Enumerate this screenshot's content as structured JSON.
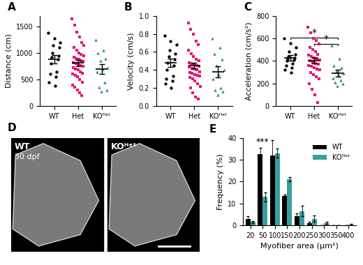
{
  "chart_data": [
    {
      "type": "scatter",
      "title": "A",
      "y_label": "Distance (cm)",
      "ylim": [
        0,
        1700
      ],
      "yticks": [
        0,
        500,
        1000,
        1500
      ],
      "groups": [
        {
          "name": "WT",
          "color": "#000000",
          "marker": "circle",
          "values": [
            1380,
            1280,
            1200,
            1150,
            1100,
            1000,
            950,
            920,
            880,
            800,
            650,
            600,
            550,
            450,
            380
          ],
          "mean": 880,
          "error": 80
        },
        {
          "name": "Het",
          "color": "#e6176f",
          "marker": "square",
          "values": [
            1650,
            1520,
            1400,
            1300,
            1200,
            1150,
            1100,
            1050,
            1000,
            980,
            950,
            920,
            900,
            880,
            860,
            840,
            820,
            800,
            780,
            760,
            750,
            730,
            700,
            680,
            650,
            620,
            600,
            580,
            550,
            500,
            450,
            400,
            350,
            300,
            250,
            200
          ],
          "mean": 810,
          "error": 55
        },
        {
          "name": "KOᴴᵉᵗ",
          "color": "#2a8a8a",
          "marker": "triangle",
          "values": [
            1250,
            1050,
            1000,
            900,
            850,
            720,
            700,
            650,
            450,
            350,
            300,
            280
          ],
          "mean": 700,
          "error": 90
        }
      ]
    },
    {
      "type": "scatter",
      "title": "B",
      "y_label": "Velocity (cm/s)",
      "ylim": [
        0.0,
        1.0
      ],
      "yticks": [
        0.0,
        0.2,
        0.4,
        0.6,
        0.8,
        1.0
      ],
      "groups": [
        {
          "name": "WT",
          "color": "#000000",
          "marker": "circle",
          "values": [
            0.78,
            0.72,
            0.68,
            0.62,
            0.58,
            0.55,
            0.52,
            0.48,
            0.45,
            0.4,
            0.33,
            0.3,
            0.28,
            0.25,
            0.2
          ],
          "mean": 0.48,
          "error": 0.05
        },
        {
          "name": "Het",
          "color": "#e6176f",
          "marker": "square",
          "values": [
            0.92,
            0.85,
            0.8,
            0.72,
            0.68,
            0.62,
            0.58,
            0.55,
            0.52,
            0.5,
            0.48,
            0.47,
            0.46,
            0.45,
            0.44,
            0.43,
            0.42,
            0.41,
            0.4,
            0.38,
            0.37,
            0.36,
            0.35,
            0.34,
            0.33,
            0.32,
            0.3,
            0.28,
            0.25,
            0.22,
            0.2,
            0.15,
            0.1,
            0.08
          ],
          "mean": 0.45,
          "error": 0.03
        },
        {
          "name": "KOᴴᵉᵗ",
          "color": "#2a8a8a",
          "marker": "triangle",
          "values": [
            0.75,
            0.65,
            0.58,
            0.52,
            0.45,
            0.4,
            0.35,
            0.3,
            0.2,
            0.18,
            0.16,
            0.12
          ],
          "mean": 0.38,
          "error": 0.06
        }
      ]
    },
    {
      "type": "scatter",
      "title": "C",
      "y_label": "Acceleration (cm/s²)",
      "ylim": [
        0,
        800
      ],
      "yticks": [
        0,
        200,
        400,
        600,
        800
      ],
      "annotations": [
        {
          "text": "*",
          "between": [
            "WT",
            "KOᴴᵉᵗ"
          ]
        },
        {
          "text": "*",
          "between": [
            "Het",
            "KOᴴᵉᵗ"
          ]
        }
      ],
      "groups": [
        {
          "name": "WT",
          "color": "#000000",
          "marker": "circle",
          "values": [
            600,
            560,
            520,
            480,
            460,
            440,
            430,
            420,
            410,
            400,
            380,
            360,
            340,
            320,
            300
          ],
          "mean": 425,
          "error": 25
        },
        {
          "name": "Het",
          "color": "#e6176f",
          "marker": "square",
          "values": [
            700,
            650,
            600,
            580,
            550,
            520,
            500,
            480,
            460,
            450,
            440,
            430,
            420,
            410,
            400,
            390,
            380,
            370,
            360,
            350,
            340,
            330,
            320,
            300,
            280,
            260,
            240,
            200,
            150,
            100,
            30
          ],
          "mean": 400,
          "error": 25
        },
        {
          "name": "KOᴴᵉᵗ",
          "color": "#2a8a8a",
          "marker": "triangle",
          "values": [
            540,
            420,
            360,
            340,
            310,
            290,
            270,
            250,
            230,
            210,
            200,
            180
          ],
          "mean": 290,
          "error": 30
        }
      ]
    },
    {
      "type": "image",
      "title": "D",
      "panels": [
        {
          "label": "WT",
          "note": "30 dpf"
        },
        {
          "label": "KOᴴᵉᵗ"
        }
      ]
    },
    {
      "type": "bar",
      "title": "E",
      "x_label": "Myofiber area (μm²)",
      "y_label": "Frequency (%)",
      "categories": [
        "20",
        "50",
        "100",
        "150",
        "200",
        "250",
        "300",
        "350",
        "400"
      ],
      "ylim": [
        0,
        40
      ],
      "yticks": [
        0,
        10,
        20,
        30,
        40
      ],
      "legend": "upper right",
      "annotations": [
        {
          "text": "***",
          "category": "50"
        }
      ],
      "series": [
        {
          "name": "WT",
          "color": "#000000",
          "values": [
            3,
            32.5,
            32,
            13.5,
            4,
            1,
            0,
            0,
            0
          ],
          "error": [
            1,
            3,
            7,
            0.5,
            1.5,
            0.5,
            0,
            0,
            0
          ]
        },
        {
          "name": "KOᴴᵉᵗ",
          "color": "#3a9e9e",
          "values": [
            1.5,
            13,
            33,
            21,
            6.5,
            3,
            1,
            0,
            0.3
          ],
          "error": [
            0.5,
            2,
            2,
            1,
            2.5,
            1.5,
            0.5,
            0,
            0.3
          ]
        }
      ]
    }
  ]
}
